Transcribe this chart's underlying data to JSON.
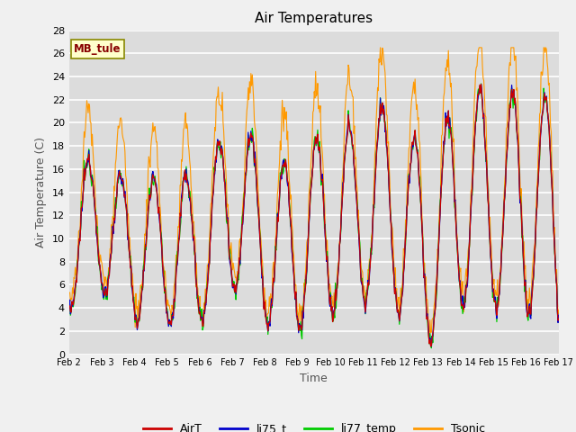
{
  "title": "Air Temperatures",
  "xlabel": "Time",
  "ylabel": "Air Temperature (C)",
  "ylim": [
    0,
    28
  ],
  "yticks": [
    0,
    2,
    4,
    6,
    8,
    10,
    12,
    14,
    16,
    18,
    20,
    22,
    24,
    26,
    28
  ],
  "colors": {
    "AirT": "#cc0000",
    "li75_t": "#0000cc",
    "li77_temp": "#00cc00",
    "Tsonic": "#ff9900"
  },
  "legend_labels": [
    "AirT",
    "li75_t",
    "li77_temp",
    "Tsonic"
  ],
  "annotation_text": "MB_tule",
  "annotation_color": "#880000",
  "annotation_bg": "#ffffcc",
  "annotation_border": "#888800",
  "plot_bg_color": "#dcdcdc",
  "grid_color": "#ffffff",
  "n_days": 15
}
